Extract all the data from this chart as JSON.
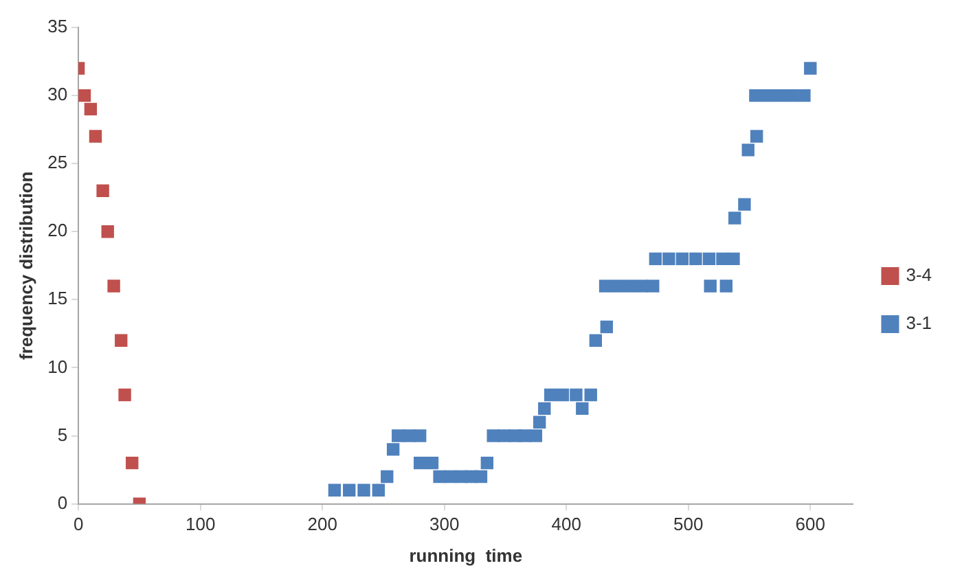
{
  "chart_data": {
    "type": "scatter",
    "xlabel": "running  time",
    "ylabel": "frequency distribution",
    "marker": "square",
    "legend": "right",
    "grid": false,
    "xlim": [
      0,
      635
    ],
    "xticks": [
      0,
      100,
      200,
      300,
      400,
      500,
      600
    ],
    "ylim": [
      0,
      35
    ],
    "yticks": [
      0,
      5,
      10,
      15,
      20,
      25,
      30,
      35
    ],
    "series": [
      {
        "name": "3-4",
        "color": "#c0504d",
        "x": [
          0,
          5,
          10,
          14,
          20,
          24,
          29,
          35,
          38,
          44,
          50
        ],
        "values": [
          32,
          30,
          29,
          27,
          23,
          20,
          16,
          12,
          8,
          3,
          0
        ]
      },
      {
        "name": "3-1",
        "color": "#4f81bd",
        "x": [
          210,
          222,
          234,
          246,
          253,
          258,
          262,
          271,
          280,
          280,
          290,
          296,
          305,
          314,
          322,
          330,
          335,
          340,
          349,
          358,
          366,
          375,
          378,
          382,
          387,
          397,
          408,
          420,
          413,
          424,
          433,
          432,
          442,
          452,
          462,
          471,
          473,
          484,
          495,
          506,
          517,
          528,
          537,
          518,
          531,
          538,
          546,
          549,
          556,
          555,
          565,
          575,
          585,
          595,
          600
        ],
        "values": [
          1,
          1,
          1,
          1,
          2,
          4,
          5,
          5,
          5,
          3,
          3,
          2,
          2,
          2,
          2,
          2,
          3,
          5,
          5,
          5,
          5,
          5,
          6,
          7,
          8,
          8,
          8,
          8,
          7,
          12,
          13,
          16,
          16,
          16,
          16,
          16,
          18,
          18,
          18,
          18,
          18,
          18,
          18,
          16,
          16,
          21,
          22,
          26,
          27,
          30,
          30,
          30,
          30,
          30,
          32
        ]
      }
    ]
  }
}
